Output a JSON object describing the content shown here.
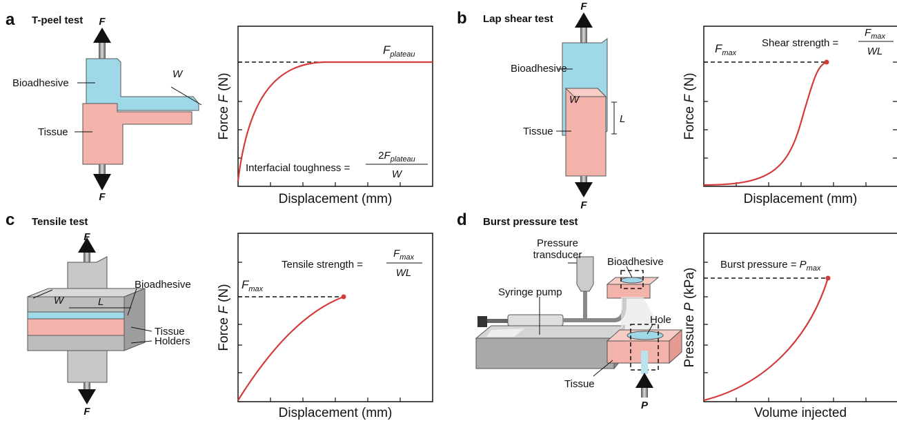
{
  "panels": [
    {
      "letter": "a",
      "title": "T-peel test",
      "diagram": {
        "force_top": "F",
        "force_bottom": "F",
        "adhesive": "Bioadhesive",
        "tissue": "Tissue",
        "width": "W"
      },
      "plot": {
        "y_label": [
          "Force ",
          "F",
          " (N)"
        ],
        "x_label": "Displacement (mm)",
        "curve_label": [
          "F",
          "plateau"
        ],
        "annotation": {
          "text": "Interfacial toughness =",
          "numerator": [
            "2",
            "F",
            "plateau"
          ],
          "denominator": "W"
        }
      }
    },
    {
      "letter": "b",
      "title": "Lap shear test",
      "diagram": {
        "force_top": "F",
        "force_bottom": "F",
        "adhesive": "Bioadhesive",
        "tissue": "Tissue",
        "width": "W",
        "length": "L"
      },
      "plot": {
        "y_label": [
          "Force ",
          "F",
          " (N)"
        ],
        "x_label": "Displacement (mm)",
        "curve_label": [
          "F",
          "max"
        ],
        "annotation": {
          "text": "Shear strength =",
          "numerator": [
            "F",
            "max"
          ],
          "denominator": "WL"
        }
      }
    },
    {
      "letter": "c",
      "title": "Tensile test",
      "diagram": {
        "force_top": "F",
        "force_bottom": "F",
        "adhesive": "Bioadhesive",
        "tissue": "Tissue",
        "holders": "Holders",
        "width": "W",
        "length": "L"
      },
      "plot": {
        "y_label": [
          "Force ",
          "F",
          " (N)"
        ],
        "x_label": "Displacement (mm)",
        "curve_label": [
          "F",
          "max"
        ],
        "annotation": {
          "text": "Tensile strength =",
          "numerator": [
            "F",
            "max"
          ],
          "denominator": "WL"
        }
      }
    },
    {
      "letter": "d",
      "title": "Burst pressure test",
      "diagram": {
        "transducer": [
          "Pressure",
          "transducer"
        ],
        "pump": "Syringe pump",
        "adhesive": "Bioadhesive",
        "hole": "Hole",
        "tissue": "Tissue",
        "pressure": "P"
      },
      "plot": {
        "y_label": [
          "Pressure ",
          "P",
          " (kPa)"
        ],
        "x_label": "Volume injected",
        "annotation": {
          "text": "Burst pressure =",
          "value": [
            "P",
            "max"
          ]
        }
      }
    }
  ]
}
